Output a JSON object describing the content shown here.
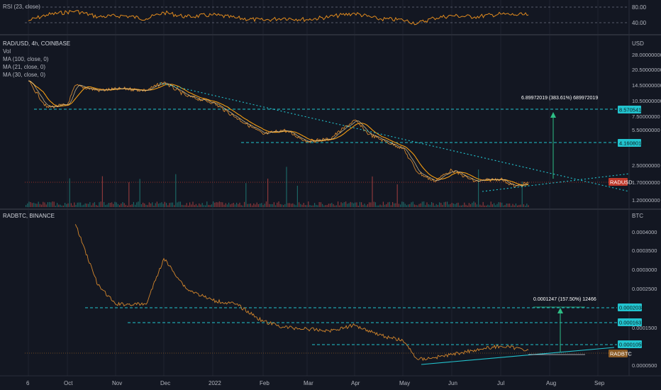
{
  "colors": {
    "background": "#131722",
    "grid": "#1f2330",
    "separator": "#2a2e39",
    "text": "#b2b5be",
    "price_line": "#d4862c",
    "ma_line": "#f39c12",
    "ma_short": "#e8d5a3",
    "trend": "#22c4cf",
    "rsi_line": "#e08a1e",
    "label_red": "#c0392b",
    "label_brown": "#8a5a24",
    "volume_green": "#26a69a",
    "volume_red": "#ef5350"
  },
  "panes": {
    "rsi": {
      "legend": "RSI (23, close)",
      "levels": [
        "80.00",
        "40.00"
      ]
    },
    "radusd": {
      "title": "RAD/USD, 4h, COINBASE",
      "legend_lines": [
        "Vol",
        "MA (100, close, 0)",
        "MA (21, close, 0)",
        "MA (30, close, 0)"
      ],
      "currency": "USD",
      "axis_labels": [
        "28.00000000",
        "20.50000000",
        "14.50000000",
        "10.50000000",
        "7.50000000",
        "5.50000000",
        "2.50000000",
        "1.70000000",
        "1.20000000"
      ],
      "levels": [
        "8.57054146",
        "4.16080174"
      ],
      "symbol_tag": "RADUSD",
      "measure_text": "6.89972019 (383.61%) 689972019"
    },
    "radbtc": {
      "title": "RADBTC, BINANCE",
      "currency": "BTC",
      "axis_labels": [
        "0.0004000",
        "0.0003500",
        "0.0003000",
        "0.0002500",
        "0.0001500",
        "0.0000500"
      ],
      "levels": [
        "0.0002038",
        "0.0001631",
        "0.0001055"
      ],
      "symbol_tag": "RADBTC",
      "measure_text": "0.0001247 (157.50%) 12466"
    }
  },
  "time_axis": [
    "6",
    "Oct",
    "Nov",
    "Dec",
    "2022",
    "Feb",
    "Mar",
    "Apr",
    "May",
    "Jun",
    "Jul",
    "Aug",
    "Sep"
  ],
  "chart_data": [
    {
      "type": "line",
      "title": "RSI (23, close)",
      "x": [
        "Sep 6",
        "Sep 20",
        "Oct 6",
        "Oct 20",
        "Nov 6",
        "Nov 20",
        "Dec 1",
        "Dec 15",
        "Jan 1",
        "Jan 15",
        "Feb 1",
        "Feb 15",
        "Mar 1",
        "Mar 15",
        "Apr 1",
        "Apr 15",
        "May 1",
        "May 10",
        "May 20",
        "Jun 1",
        "Jun 15",
        "Jul 1",
        "Jul 10",
        "Jul 18"
      ],
      "series": [
        {
          "values": [
            45,
            60,
            70,
            55,
            58,
            50,
            66,
            55,
            60,
            52,
            46,
            52,
            48,
            55,
            64,
            50,
            47,
            38,
            52,
            58,
            55,
            62,
            60,
            60
          ]
        }
      ],
      "ylim": [
        20,
        90
      ],
      "levels": [
        80,
        40
      ]
    },
    {
      "type": "line",
      "title": "RAD/USD, 4h, COINBASE",
      "log_scale": true,
      "x": [
        "Sep 6",
        "Sep 20",
        "Oct 1",
        "Oct 6",
        "Oct 20",
        "Nov 6",
        "Nov 20",
        "Dec 1",
        "Dec 15",
        "Jan 1",
        "Jan 15",
        "Feb 1",
        "Feb 15",
        "Mar 1",
        "Mar 15",
        "Apr 1",
        "Apr 10",
        "Apr 20",
        "May 1",
        "May 10",
        "May 20",
        "Jun 1",
        "Jun 15",
        "Jul 1",
        "Jul 10",
        "Jul 18"
      ],
      "series": [
        {
          "name": "RAD/USD",
          "values": [
            16.0,
            9.0,
            9.5,
            14.5,
            13.0,
            13.5,
            13.0,
            15.5,
            11.5,
            10.0,
            7.2,
            5.0,
            5.5,
            4.3,
            4.5,
            6.8,
            5.0,
            4.3,
            3.7,
            2.2,
            1.8,
            2.3,
            1.8,
            1.9,
            1.6,
            1.75
          ]
        }
      ],
      "levels": [
        8.57054146,
        4.16080174
      ],
      "measure": {
        "text": "6.89972019 (383.61%) 689972019"
      },
      "ylim": [
        1.2,
        28.0
      ]
    },
    {
      "type": "line",
      "title": "RADBTC, BINANCE",
      "x": [
        "Sep 6",
        "Sep 20",
        "Oct 1",
        "Oct 6",
        "Oct 20",
        "Nov 1",
        "Nov 20",
        "Dec 1",
        "Dec 15",
        "Jan 1",
        "Jan 15",
        "Feb 1",
        "Feb 15",
        "Mar 1",
        "Mar 15",
        "Apr 1",
        "Apr 20",
        "May 1",
        "May 10",
        "May 20",
        "Jun 1",
        "Jun 15",
        "Jul 1",
        "Jul 10",
        "Jul 18"
      ],
      "series": [
        {
          "name": "RADBTC",
          "values": [
            null,
            null,
            null,
            0.00042,
            0.00026,
            0.00021,
            0.00021,
            0.00033,
            0.00025,
            0.00022,
            0.00021,
            0.000165,
            0.00015,
            0.000145,
            0.00014,
            0.000155,
            0.000125,
            0.000115,
            6.5e-05,
            7e-05,
            7.8e-05,
            9e-05,
            0.0001,
            9.5e-05,
            9e-05
          ]
        }
      ],
      "levels": [
        0.0002038,
        0.0001631,
        0.0001055
      ],
      "measure": {
        "text": "0.0001247 (157.50%) 12466"
      },
      "ylim": [
        5e-05,
        0.00045
      ]
    }
  ]
}
